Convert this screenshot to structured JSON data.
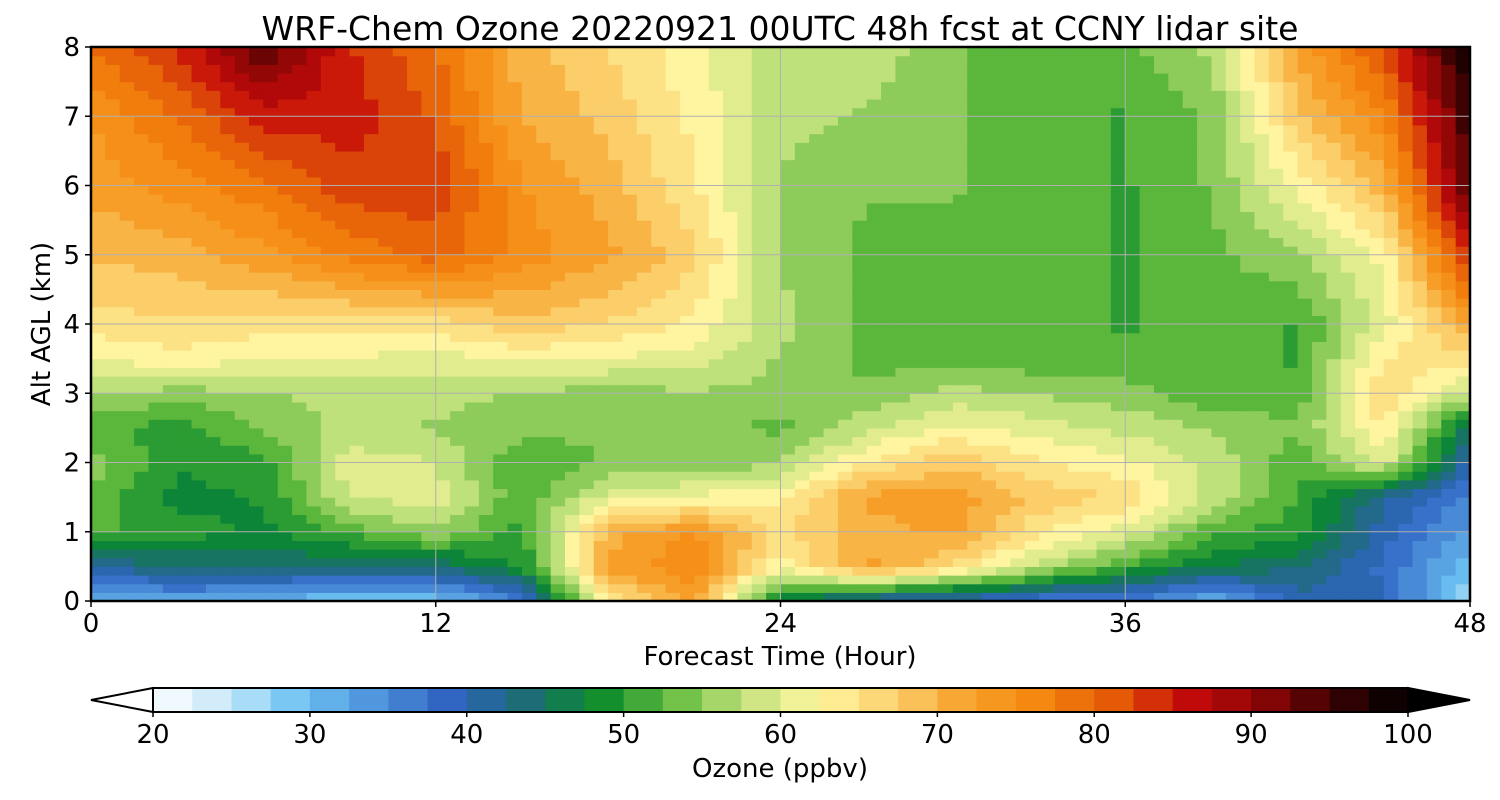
{
  "chart_data": {
    "type": "heatmap",
    "title": "WRF-Chem Ozone  20220921 00UTC 48h fcst at CCNY lidar site",
    "xlabel": "Forecast Time (Hour)",
    "ylabel": "Alt AGL (km)",
    "xlim": [
      0,
      48
    ],
    "ylim": [
      0,
      8
    ],
    "xticks": [
      0,
      12,
      24,
      36,
      48
    ],
    "yticks": [
      0,
      1,
      2,
      3,
      4,
      5,
      6,
      7,
      8
    ],
    "grid": true,
    "colorbar": {
      "label": "Ozone  (ppbv)",
      "range": [
        20,
        100
      ],
      "ticks": [
        20,
        30,
        40,
        50,
        60,
        70,
        80,
        90,
        100
      ],
      "extend": "both",
      "colors": [
        "#ffffff",
        "#c6e9f8",
        "#6dc2f2",
        "#4f93db",
        "#2f64c2",
        "#1e6a7a",
        "#0a8a2c",
        "#63bb3e",
        "#c2e27d",
        "#fff5a0",
        "#fbd270",
        "#f7a22d",
        "#f5870f",
        "#e45b07",
        "#c40a0a",
        "#8d0606",
        "#3a0202",
        "#000000"
      ]
    },
    "x": [
      0,
      3,
      6,
      9,
      12,
      15,
      18,
      21,
      24,
      27,
      30,
      33,
      36,
      39,
      42,
      45,
      48
    ],
    "y": [
      0,
      0.5,
      1,
      1.5,
      2,
      2.5,
      3,
      3.5,
      4,
      5,
      6,
      7,
      8
    ],
    "ozone_ppbv": [
      [
        30,
        32,
        30,
        29,
        29,
        36,
        64,
        72,
        46,
        40,
        39,
        36,
        36,
        31,
        40,
        40,
        25
      ],
      [
        41,
        44,
        45,
        43,
        44,
        49,
        72,
        76,
        62,
        72,
        66,
        58,
        51,
        46,
        44,
        38,
        30
      ],
      [
        52,
        50,
        48,
        52,
        56,
        50,
        70,
        74,
        66,
        70,
        72,
        64,
        60,
        52,
        50,
        40,
        33
      ],
      [
        53,
        48,
        49,
        59,
        60,
        52,
        60,
        62,
        63,
        72,
        73,
        68,
        66,
        58,
        51,
        42,
        35
      ],
      [
        55,
        49,
        50,
        60,
        59,
        51,
        54,
        54,
        56,
        64,
        68,
        64,
        62,
        58,
        52,
        60,
        40
      ],
      [
        52,
        50,
        54,
        57,
        56,
        55,
        54,
        55,
        53,
        58,
        62,
        60,
        58,
        56,
        54,
        64,
        45
      ],
      [
        57,
        55,
        56,
        57,
        57,
        56,
        55,
        56,
        55,
        54,
        57,
        56,
        55,
        52,
        52,
        66,
        58
      ],
      [
        61,
        63,
        61,
        61,
        60,
        62,
        61,
        60,
        56,
        53,
        53,
        52,
        52,
        52,
        51,
        64,
        65
      ],
      [
        65,
        66,
        65,
        65,
        65,
        68,
        66,
        63,
        57,
        53,
        52,
        52,
        51,
        52,
        51,
        60,
        72
      ],
      [
        69,
        70,
        73,
        77,
        80,
        75,
        72,
        67,
        56,
        53,
        53,
        52,
        51,
        53,
        56,
        62,
        85
      ],
      [
        72,
        75,
        78,
        83,
        83,
        74,
        70,
        64,
        56,
        54,
        54,
        52,
        51,
        54,
        62,
        70,
        94
      ],
      [
        74,
        79,
        85,
        85,
        81,
        71,
        68,
        63,
        57,
        56,
        54,
        52,
        51,
        54,
        68,
        76,
        96
      ],
      [
        79,
        84,
        94,
        84,
        79,
        70,
        66,
        62,
        57,
        58,
        54,
        53,
        53,
        57,
        72,
        82,
        99
      ]
    ]
  }
}
